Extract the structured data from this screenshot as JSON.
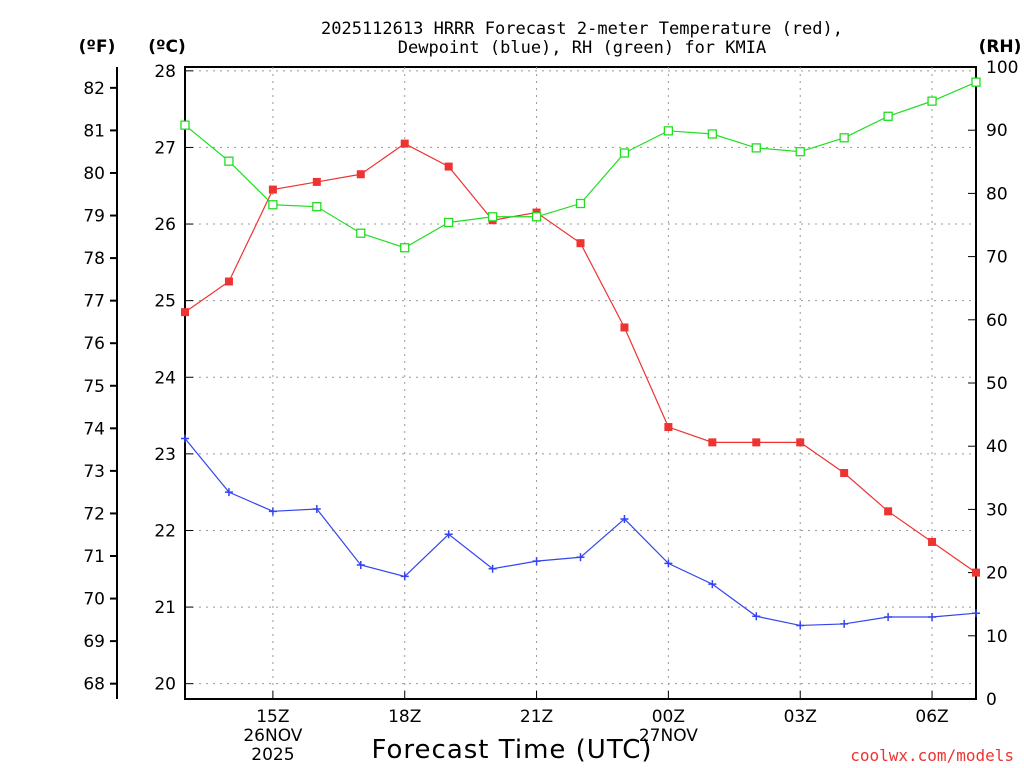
{
  "chart_data": {
    "type": "line",
    "title_line1": "2025112613 HRRR Forecast 2-meter Temperature (red),",
    "title_line2": "Dewpoint (blue), RH (green) for KMIA",
    "xlabel": "Forecast Time (UTC)",
    "unit_f": "(ºF)",
    "unit_c": "(ºC)",
    "unit_rh": "(RH)",
    "credit": "coolwx.com/models",
    "x_hours": [
      13,
      14,
      15,
      16,
      17,
      18,
      19,
      20,
      21,
      22,
      23,
      24,
      25,
      26,
      27,
      28,
      29,
      30,
      31
    ],
    "xlim": [
      13,
      31
    ],
    "x_ticks": [
      {
        "hour": 15,
        "label": "15Z"
      },
      {
        "hour": 18,
        "label": "18Z"
      },
      {
        "hour": 21,
        "label": "21Z"
      },
      {
        "hour": 24,
        "label": "00Z"
      },
      {
        "hour": 27,
        "label": "03Z"
      },
      {
        "hour": 30,
        "label": "06Z"
      }
    ],
    "date_labels": [
      {
        "hour": 15,
        "line1": "26NOV",
        "line2": "2025"
      },
      {
        "hour": 24,
        "line1": "27NOV",
        "line2": ""
      }
    ],
    "celsius_axis": {
      "min": 19.8,
      "max": 28.05,
      "ticks": [
        20,
        21,
        22,
        23,
        24,
        25,
        26,
        27,
        28
      ]
    },
    "fahrenheit_ticks": [
      68,
      69,
      70,
      71,
      72,
      73,
      74,
      75,
      76,
      77,
      78,
      79,
      80,
      81,
      82
    ],
    "rh_axis": {
      "min": 0,
      "max": 100,
      "ticks": [
        0,
        10,
        20,
        30,
        40,
        50,
        60,
        70,
        80,
        90,
        100
      ]
    },
    "series": [
      {
        "name": "2-meter Temperature",
        "color": "#ee3333",
        "axis": "celsius",
        "marker": "filled-square",
        "values": [
          24.85,
          25.25,
          26.45,
          26.55,
          26.65,
          27.05,
          26.75,
          26.05,
          26.15,
          25.75,
          24.65,
          23.35,
          23.15,
          23.15,
          23.15,
          22.75,
          22.25,
          21.85,
          21.45
        ]
      },
      {
        "name": "Dewpoint",
        "color": "#3344ee",
        "axis": "celsius",
        "marker": "plus",
        "values": [
          23.2,
          22.5,
          22.25,
          22.28,
          21.55,
          21.4,
          21.95,
          21.5,
          21.6,
          21.65,
          22.15,
          21.57,
          21.3,
          20.88,
          20.76,
          20.78,
          20.87,
          20.87,
          20.92
        ]
      },
      {
        "name": "RH",
        "color": "#22dd22",
        "axis": "rh",
        "marker": "open-square",
        "values": [
          90.8,
          85.1,
          78.2,
          77.9,
          73.7,
          71.4,
          75.4,
          76.3,
          76.3,
          78.4,
          86.4,
          89.9,
          89.4,
          87.2,
          86.6,
          88.8,
          92.2,
          94.6,
          97.6
        ]
      }
    ]
  }
}
